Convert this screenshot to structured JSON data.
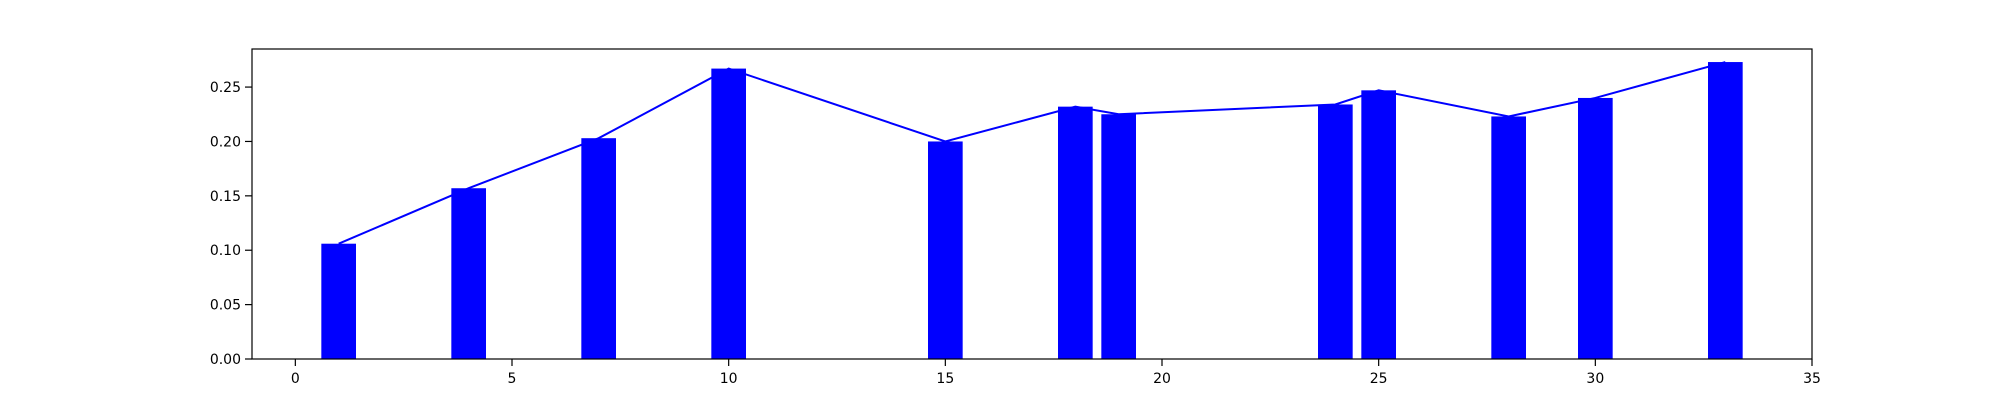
{
  "chart_data": {
    "type": "bar",
    "title": "",
    "xlabel": "",
    "ylabel": "",
    "xlim": [
      -1,
      35
    ],
    "ylim": [
      0,
      0.285
    ],
    "bar_width": 0.8,
    "x_ticks": [
      {
        "value": 0,
        "label": "0"
      },
      {
        "value": 5,
        "label": "5"
      },
      {
        "value": 10,
        "label": "10"
      },
      {
        "value": 15,
        "label": "15"
      },
      {
        "value": 20,
        "label": "20"
      },
      {
        "value": 25,
        "label": "25"
      },
      {
        "value": 30,
        "label": "30"
      },
      {
        "value": 35,
        "label": "35"
      }
    ],
    "y_ticks": [
      {
        "value": 0,
        "label": "0.00"
      },
      {
        "value": 0.05,
        "label": "0.05"
      },
      {
        "value": 0.1,
        "label": "0.10"
      },
      {
        "value": 0.15,
        "label": "0.15"
      },
      {
        "value": 0.2,
        "label": "0.20"
      },
      {
        "value": 0.25,
        "label": "0.25"
      }
    ],
    "grid": false,
    "legend": "none",
    "colors": {
      "bar": "#0000ff",
      "line": "#0000ff",
      "axis": "#000000"
    },
    "series": [
      {
        "kind": "bar",
        "x": [
          1,
          4,
          7,
          10,
          15,
          18,
          19,
          24,
          25,
          28,
          30,
          33
        ],
        "values": [
          0.106,
          0.157,
          0.203,
          0.267,
          0.2,
          0.232,
          0.225,
          0.234,
          0.247,
          0.223,
          0.24,
          0.273
        ]
      },
      {
        "kind": "line",
        "x": [
          1,
          4,
          7,
          10,
          15,
          18,
          19,
          24,
          25,
          28,
          30,
          33
        ],
        "values": [
          0.106,
          0.157,
          0.203,
          0.267,
          0.2,
          0.232,
          0.225,
          0.234,
          0.247,
          0.223,
          0.24,
          0.273
        ]
      }
    ]
  }
}
